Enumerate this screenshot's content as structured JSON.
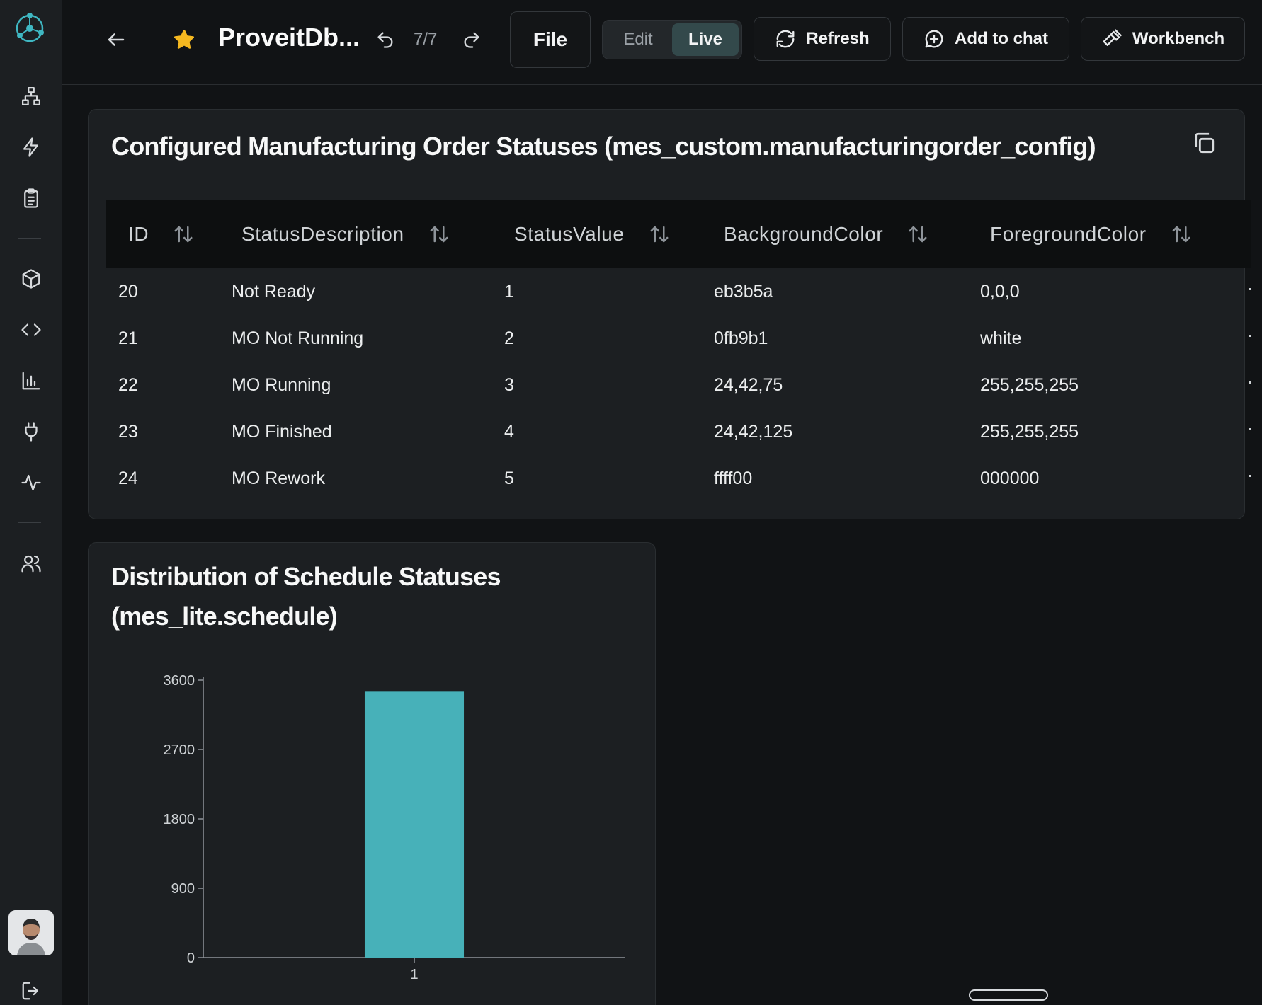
{
  "topbar": {
    "title": "ProveitDb...",
    "counter": "7/7",
    "file_label": "File",
    "mode_edit": "Edit",
    "mode_live": "Live",
    "refresh_label": "Refresh",
    "add_to_chat_label": "Add to chat",
    "workbench_label": "Workbench"
  },
  "sidebar": {
    "items": [
      "hierarchy-icon",
      "lightning-icon",
      "clipboard-icon",
      "cube-icon",
      "code-icon",
      "bar-chart-icon",
      "plug-icon",
      "activity-icon",
      "users-icon",
      "logout-icon"
    ]
  },
  "table_card": {
    "title": "Configured Manufacturing Order Statuses (mes_custom.manufacturingorder_config)",
    "columns": [
      "ID",
      "StatusDescription",
      "StatusValue",
      "BackgroundColor",
      "ForegroundColor"
    ],
    "rows": [
      [
        "20",
        "Not Ready",
        "1",
        "eb3b5a",
        "0,0,0"
      ],
      [
        "21",
        "MO Not Running",
        "2",
        "0fb9b1",
        "white"
      ],
      [
        "22",
        "MO Running",
        "3",
        "24,42,75",
        "255,255,255"
      ],
      [
        "23",
        "MO Finished",
        "4",
        "24,42,125",
        "255,255,255"
      ],
      [
        "24",
        "MO Rework",
        "5",
        "ffff00",
        "000000"
      ]
    ]
  },
  "chart_card": {
    "title_line1": "Distribution of Schedule Statuses",
    "title_line2": "(mes_lite.schedule)"
  },
  "chart_data": {
    "type": "bar",
    "categories": [
      "1"
    ],
    "values": [
      3450
    ],
    "yticks": [
      "0",
      "900",
      "1800",
      "2700",
      "3600"
    ],
    "ylim": [
      0,
      3600
    ],
    "bar_color": "#47b1b9",
    "title": "Distribution of Schedule Statuses (mes_lite.schedule)",
    "xlabel": "",
    "ylabel": ""
  },
  "colors": {
    "accent": "#47b1b9",
    "star": "#f5b820",
    "background": "#111315",
    "card": "#1c1f22"
  }
}
